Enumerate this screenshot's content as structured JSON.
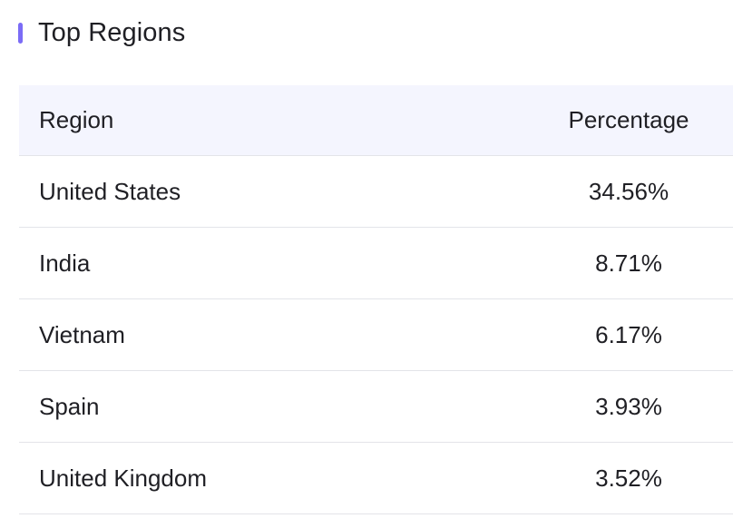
{
  "section": {
    "title": "Top Regions",
    "accent_color": "#7b6cf6"
  },
  "table": {
    "columns": {
      "region": "Region",
      "percentage": "Percentage"
    },
    "rows": [
      {
        "region": "United States",
        "percentage": "34.56%"
      },
      {
        "region": "India",
        "percentage": "8.71%"
      },
      {
        "region": "Vietnam",
        "percentage": "6.17%"
      },
      {
        "region": "Spain",
        "percentage": "3.93%"
      },
      {
        "region": "United Kingdom",
        "percentage": "3.52%"
      }
    ]
  }
}
